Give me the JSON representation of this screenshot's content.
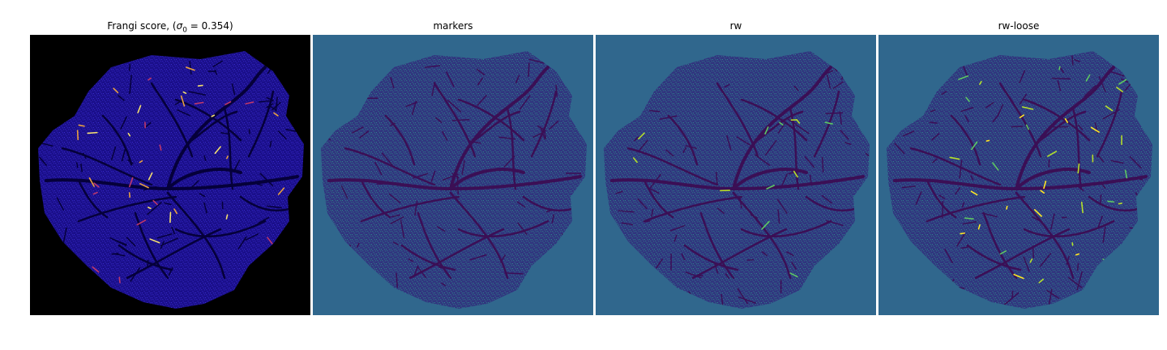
{
  "figure": {
    "panels": [
      {
        "id": "frangi",
        "title": "Frangi score, (",
        "title_sigma": "σ",
        "title_sub": "0",
        "title_rest": " = 0.354)",
        "background": "#000000",
        "blob_color": "#1a0f8a",
        "texture_color": "#3a2bd0",
        "vessel_color": "#05003a",
        "highlight_colors": [
          "#c0386a",
          "#e8a040",
          "#f5e070"
        ],
        "highlight_amount": "high"
      },
      {
        "id": "markers",
        "title": "markers",
        "background": "#30678d",
        "blob_color": "#31357f",
        "texture_color": "#2c8c8b",
        "vessel_color": "#3b0f55",
        "highlight_colors": [],
        "highlight_amount": "none"
      },
      {
        "id": "rw",
        "title": "rw",
        "background": "#30678d",
        "blob_color": "#31357f",
        "texture_color": "#2c8c8b",
        "vessel_color": "#3b0f55",
        "highlight_colors": [
          "#5ec962",
          "#b5de2b"
        ],
        "highlight_amount": "low"
      },
      {
        "id": "rw-loose",
        "title": "rw-loose",
        "background": "#30678d",
        "blob_color": "#31357f",
        "texture_color": "#2c8c8b",
        "vessel_color": "#3b0f55",
        "highlight_colors": [
          "#b5de2b",
          "#fde725",
          "#5ec962"
        ],
        "highlight_amount": "high"
      }
    ]
  }
}
